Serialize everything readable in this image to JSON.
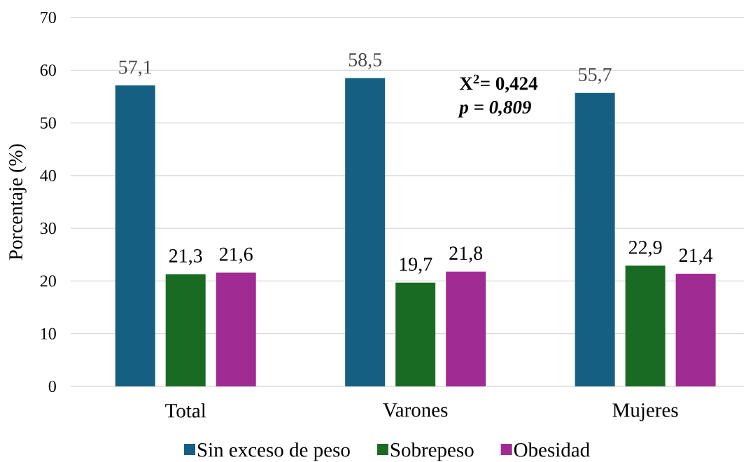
{
  "chart_data": {
    "type": "bar",
    "categories": [
      "Total",
      "Varones",
      "Mujeres"
    ],
    "ylabel": "Porcentaje (%)",
    "series": [
      {
        "name": "Sin exceso de peso",
        "color": "#156082",
        "values": [
          57.1,
          58.5,
          55.7
        ],
        "value_labels": [
          "57,1",
          "58,5",
          "55,7"
        ]
      },
      {
        "name": "Sobrepeso",
        "color": "#196B24",
        "values": [
          21.3,
          19.7,
          22.9
        ],
        "value_labels": [
          "21,3",
          "19,7",
          "22,9"
        ]
      },
      {
        "name": "Obesidad",
        "color": "#A02B93",
        "values": [
          21.6,
          21.8,
          21.4
        ],
        "value_labels": [
          "21,6",
          "21,8",
          "21,4"
        ]
      }
    ],
    "ylim": [
      0,
      70
    ],
    "yticks": [
      0,
      10,
      20,
      30,
      40,
      50,
      60,
      70
    ],
    "grid": "y",
    "legend": "bottom",
    "annotations": [
      "X$^{2}$= 0,424",
      "p = 0,809"
    ]
  }
}
